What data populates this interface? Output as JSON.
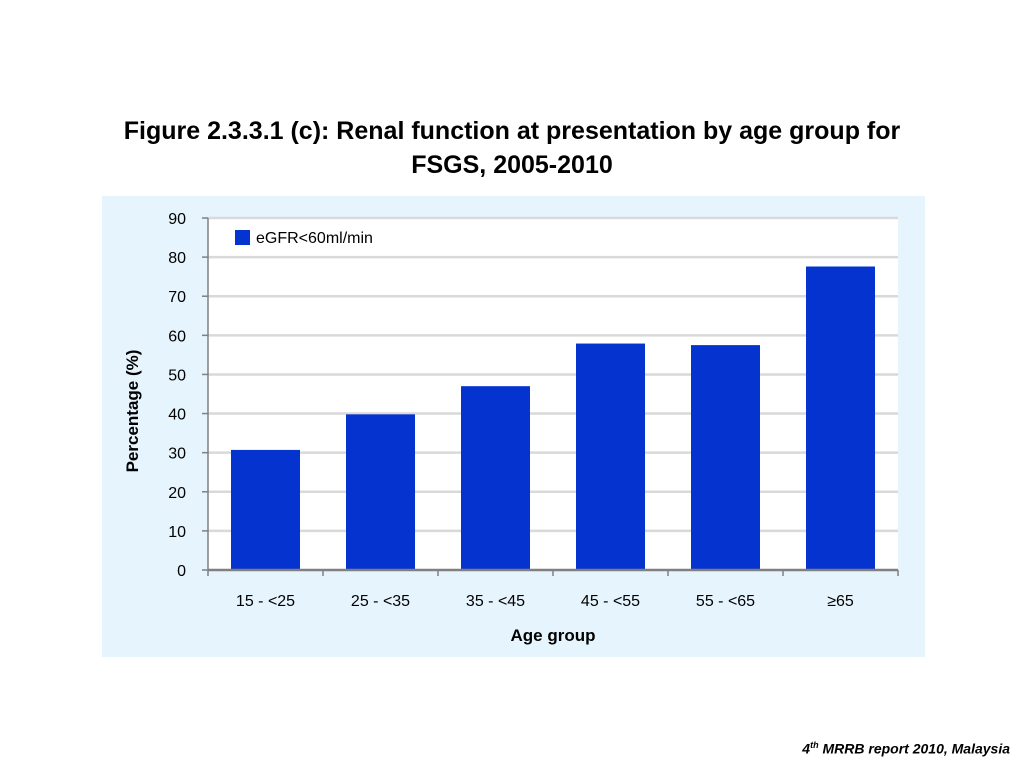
{
  "slide": {
    "title_line1": "Figure 2.3.3.1 (c): Renal function at presentation by age group for",
    "title_line2": "FSGS, 2005-2010",
    "footer_num": "4",
    "footer_sup": "th",
    "footer_text": " MRRB report 2010, Malaysia"
  },
  "chart_data": {
    "type": "bar",
    "title": "Figure 2.3.3.1 (c): Renal function at presentation by age group for FSGS, 2005-2010",
    "xlabel": "Age group",
    "ylabel": "Percentage (%)",
    "categories": [
      "15 - <25",
      "25 - <35",
      "35 - <45",
      "45 - <55",
      "55 - <65",
      "≥65"
    ],
    "series": [
      {
        "name": "eGFR<60ml/min",
        "values": [
          30.7,
          39.8,
          47.0,
          57.9,
          57.5,
          77.6
        ],
        "color": "#0433cf"
      }
    ],
    "ylim": [
      0,
      90
    ],
    "yticks": [
      0,
      10,
      20,
      30,
      40,
      50,
      60,
      70,
      80,
      90
    ],
    "grid": true,
    "legend": "top-left",
    "colors": {
      "panel": "#e6f4fd",
      "plot": "#ffffff",
      "grid": "#d9d9d9",
      "axis": "#808080"
    }
  }
}
